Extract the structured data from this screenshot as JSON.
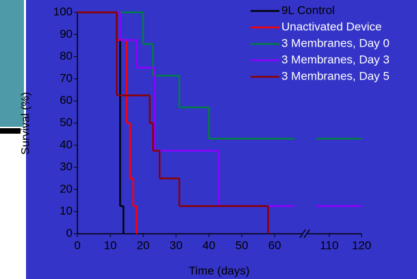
{
  "chart_data": {
    "type": "step",
    "xlabel": "Time (days)",
    "ylabel": "Survival (%)",
    "xlim": [
      0,
      120
    ],
    "xbreak": [
      66,
      106
    ],
    "xticks": [
      0,
      10,
      20,
      30,
      40,
      50,
      60,
      110,
      120
    ],
    "ylim": [
      0,
      100
    ],
    "yticks": [
      0,
      10,
      20,
      30,
      40,
      50,
      60,
      70,
      80,
      90,
      100
    ],
    "series": [
      {
        "name": "9L Control",
        "color": "#000000",
        "x": [
          0,
          12,
          13,
          14
        ],
        "values": [
          100,
          87.5,
          12.5,
          0
        ]
      },
      {
        "name": "Unactivated Device",
        "color": "#ff0000",
        "x": [
          0,
          12,
          15,
          16,
          17,
          18
        ],
        "values": [
          100,
          87.5,
          50,
          25,
          12.5,
          0
        ]
      },
      {
        "name": "3 Membranes, Day 0",
        "color": "#007f3f",
        "x": [
          0,
          20,
          23,
          31,
          40
        ],
        "values": [
          100,
          85.7,
          71.4,
          57.1,
          42.9
        ]
      },
      {
        "name": "3 Membranes, Day 3",
        "color": "#8f00ff",
        "x": [
          0,
          13,
          18,
          23.5,
          43
        ],
        "values": [
          100,
          87.5,
          75,
          37.5,
          12.5
        ]
      },
      {
        "name": "3 Membranes, Day 5",
        "color": "#8b0000",
        "x": [
          0,
          12,
          22,
          23,
          25,
          31,
          58
        ],
        "values": [
          100,
          62.5,
          50,
          37.5,
          25,
          12.5,
          0
        ]
      }
    ]
  }
}
